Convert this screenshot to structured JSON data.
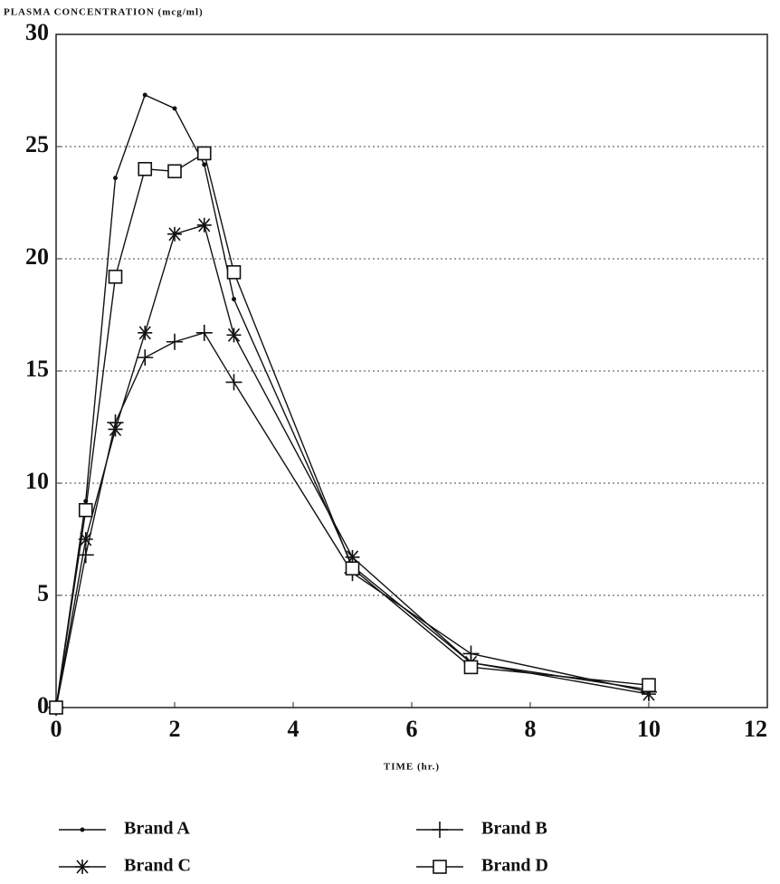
{
  "chart_data": {
    "type": "line",
    "title": "PLASMA CONCENTRATION (mcg/ml)",
    "x_label": "TIME (hr.)",
    "x": [
      0,
      0.5,
      1,
      1.5,
      2,
      2.5,
      3,
      5,
      7,
      10
    ],
    "series": [
      {
        "name": "Brand A",
        "color": "#111111",
        "marker": "dot",
        "values": [
          0,
          9.2,
          23.6,
          27.3,
          26.7,
          24.2,
          18.2,
          6.3,
          2.0,
          0.8
        ]
      },
      {
        "name": "Brand B",
        "color": "#111111",
        "marker": "plus",
        "values": [
          0,
          6.8,
          12.7,
          15.6,
          16.3,
          16.7,
          14.5,
          6.0,
          2.4,
          0.7
        ]
      },
      {
        "name": "Brand C",
        "color": "#111111",
        "marker": "star",
        "values": [
          0,
          7.5,
          12.4,
          16.7,
          21.1,
          21.5,
          16.6,
          6.7,
          2.0,
          0.6
        ]
      },
      {
        "name": "Brand D",
        "color": "#111111",
        "marker": "square",
        "values": [
          0,
          8.8,
          19.2,
          24.0,
          23.9,
          24.7,
          19.4,
          6.2,
          1.8,
          1.0
        ]
      }
    ],
    "xlim": [
      0,
      12
    ],
    "xticks": [
      0,
      2,
      4,
      6,
      8,
      10,
      12
    ],
    "ylim": [
      0,
      30
    ],
    "yticks": [
      0,
      5,
      10,
      15,
      20,
      25,
      30
    ],
    "grid": true,
    "legend": "bottom"
  }
}
